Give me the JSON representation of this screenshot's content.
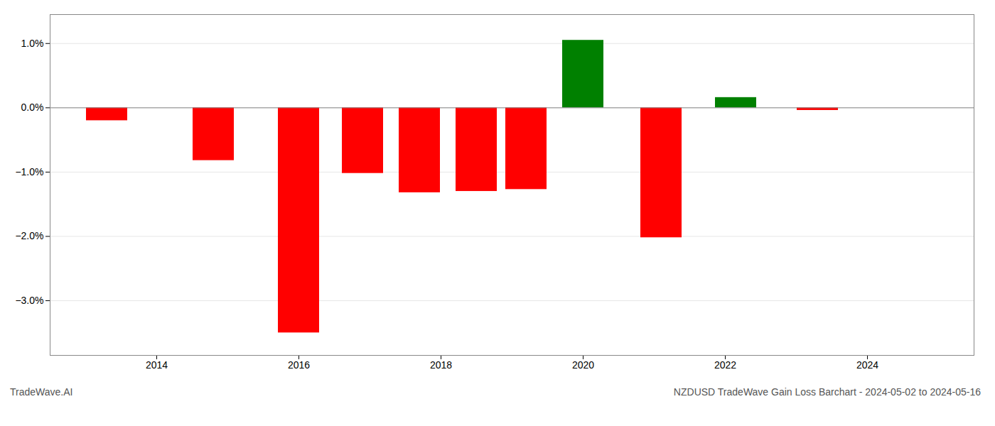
{
  "chart_data": {
    "type": "bar",
    "title": "NZDUSD TradeWave Gain Loss Barchart - 2024-05-02 to 2024-05-16",
    "footnote": "TradeWave.AI",
    "x": [
      2013.3,
      2014.8,
      2016.0,
      2016.9,
      2017.7,
      2018.5,
      2019.2,
      2020.0,
      2021.1,
      2022.15,
      2023.3
    ],
    "values": [
      -0.2,
      -0.82,
      -3.5,
      -1.02,
      -1.32,
      -1.3,
      -1.27,
      1.05,
      -2.02,
      0.16,
      -0.04
    ],
    "colors": [
      "#ff0000",
      "#ff0000",
      "#ff0000",
      "#ff0000",
      "#ff0000",
      "#ff0000",
      "#ff0000",
      "#008000",
      "#ff0000",
      "#008000",
      "#ff0000"
    ],
    "xlim": [
      2012.5,
      2025.5
    ],
    "xticks": [
      2014,
      2016,
      2018,
      2020,
      2022,
      2024
    ],
    "ylim": [
      -3.85,
      1.45
    ],
    "yticks": [
      {
        "value": -3.0,
        "label": "−3.0%"
      },
      {
        "value": -2.0,
        "label": "−2.0%"
      },
      {
        "value": -1.0,
        "label": "−1.0%"
      },
      {
        "value": 0.0,
        "label": "0.0%"
      },
      {
        "value": 1.0,
        "label": "1.0%"
      }
    ],
    "grid": true
  }
}
